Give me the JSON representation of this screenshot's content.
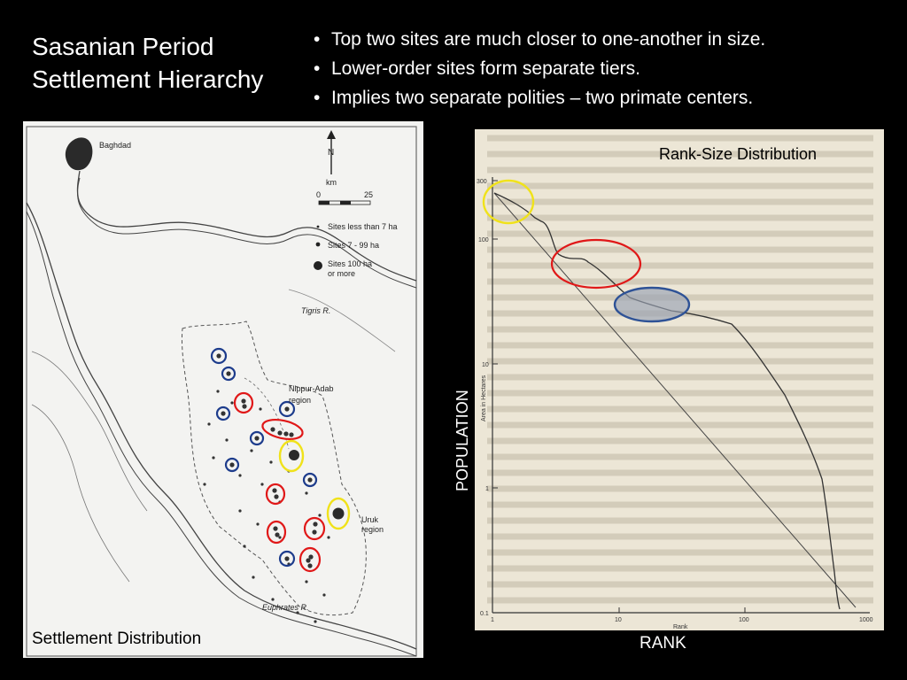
{
  "slide": {
    "title_line1": "Sasanian Period",
    "title_line2": "Settlement Hierarchy",
    "bullets": [
      "Top two sites are much closer to one-another in size.",
      "Lower-order sites form separate tiers.",
      "Implies two separate polities – two primate centers."
    ]
  },
  "map": {
    "caption": "Settlement Distribution",
    "places": {
      "baghdad": "Baghdad",
      "tigris": "Tigris R.",
      "euphrates": "Euphrates R.",
      "nippur_1": "Nippur-Adab",
      "nippur_2": "region",
      "uruk_1": "Uruk",
      "uruk_2": "region"
    },
    "north_label": "N",
    "scale": {
      "unit": "km",
      "start": "0",
      "end": "25"
    },
    "legend": {
      "small": "Sites less than 7 ha",
      "medium": "Sites 7 - 99 ha",
      "large_1": "Sites 100 ha",
      "large_2": "or more"
    },
    "annotation_colors": {
      "blue": "#1d3c8c",
      "red": "#e01818",
      "yellow": "#f0e21a"
    }
  },
  "chart": {
    "title": "Rank-Size Distribution",
    "y_caption": "POPULATION",
    "x_caption": "RANK",
    "inner_ylabel": "Area in Hectares",
    "inner_xlabel": "Rank",
    "y_ticks": [
      "300",
      "100",
      "10",
      "1",
      "0.1"
    ],
    "x_ticks": [
      "1",
      "10",
      "100",
      "1000"
    ],
    "highlight_colors": {
      "top": "#f0e21a",
      "mid": "#e01818",
      "low": "#2e5296"
    }
  }
}
